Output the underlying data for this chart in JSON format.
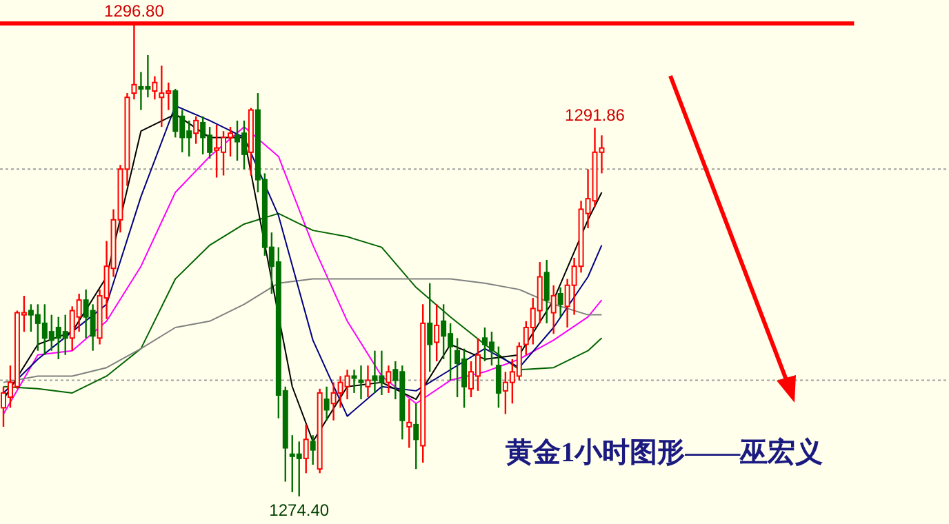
{
  "chart_data": {
    "type": "candlestick",
    "title": "黄金1小时图形——巫宏义",
    "categories": [
      null,
      null,
      null,
      null,
      null,
      null,
      null,
      null,
      null,
      null,
      null,
      null,
      null,
      null,
      null,
      null,
      null,
      null,
      null,
      null,
      null,
      null,
      null,
      null,
      null,
      null,
      null,
      null,
      null,
      null,
      null,
      null,
      null,
      null,
      null,
      null,
      null,
      null,
      null,
      null,
      null,
      null,
      null,
      null,
      null,
      null,
      null,
      null,
      null,
      null,
      null,
      null,
      null,
      null,
      null,
      null,
      null,
      null,
      null,
      null,
      null,
      null,
      null,
      null,
      null,
      null,
      null,
      null,
      null,
      null,
      null,
      null,
      null,
      null,
      null,
      null,
      null,
      null,
      null,
      null,
      null,
      null,
      null,
      null,
      null,
      null,
      null,
      null,
      null,
      null,
      null,
      null,
      null,
      null,
      null,
      null,
      null,
      null,
      null,
      null,
      null,
      null,
      null,
      null,
      null,
      null,
      null,
      null,
      null,
      null,
      null,
      null,
      null,
      null,
      null,
      null,
      null,
      null,
      null,
      null,
      null,
      null,
      null,
      null,
      null,
      null,
      null,
      null,
      null,
      null,
      null,
      null,
      null,
      null,
      null,
      null,
      null,
      null
    ],
    "ohlc": [
      [
        1278.6,
        1279.6,
        1277.7,
        1279.3
      ],
      [
        1279.1,
        1280.6,
        1278.6,
        1279.8
      ],
      [
        1279.6,
        1283.2,
        1279.5,
        1283.1
      ],
      [
        1283.0,
        1283.9,
        1282.2,
        1283.1
      ],
      [
        1283.2,
        1283.5,
        1282.2,
        1283.0
      ],
      [
        1283.0,
        1283.5,
        1281.3,
        1282.6
      ],
      [
        1282.6,
        1283.5,
        1281.1,
        1281.9
      ],
      [
        1282.2,
        1283.0,
        1281.3,
        1281.8
      ],
      [
        1282.4,
        1282.9,
        1280.9,
        1281.9
      ],
      [
        1282.2,
        1283.0,
        1281.1,
        1281.9
      ],
      [
        1281.9,
        1283.4,
        1281.3,
        1283.2
      ],
      [
        1282.9,
        1284.0,
        1282.2,
        1283.7
      ],
      [
        1283.7,
        1284.2,
        1281.9,
        1282.9
      ],
      [
        1283.2,
        1283.5,
        1281.3,
        1282.0
      ],
      [
        1281.9,
        1284.2,
        1281.6,
        1283.9
      ],
      [
        1283.8,
        1286.5,
        1282.8,
        1285.3
      ],
      [
        1285.2,
        1288.0,
        1284.8,
        1287.5
      ],
      [
        1287.5,
        1290.1,
        1286.9,
        1289.9
      ],
      [
        1289.9,
        1293.5,
        1289.1,
        1293.3
      ],
      [
        1293.5,
        1296.8,
        1293.2,
        1293.9
      ],
      [
        1293.8,
        1294.5,
        1292.7,
        1293.7
      ],
      [
        1293.8,
        1295.3,
        1293.3,
        1293.7
      ],
      [
        1293.6,
        1294.3,
        1293.2,
        1294.0
      ],
      [
        1293.3,
        1294.8,
        1291.9,
        1293.5
      ],
      [
        1293.5,
        1294.0,
        1292.7,
        1293.6
      ],
      [
        1293.6,
        1293.7,
        1291.4,
        1291.7
      ],
      [
        1292.4,
        1292.7,
        1290.7,
        1291.4
      ],
      [
        1291.7,
        1292.2,
        1290.5,
        1291.4
      ],
      [
        1291.6,
        1292.4,
        1291.1,
        1292.2
      ],
      [
        1292.1,
        1292.4,
        1290.6,
        1291.4
      ],
      [
        1291.5,
        1291.9,
        1290.4,
        1290.7
      ],
      [
        1290.8,
        1292.0,
        1289.5,
        1290.9
      ],
      [
        1290.7,
        1291.7,
        1289.6,
        1291.4
      ],
      [
        1291.4,
        1291.9,
        1290.5,
        1291.6
      ],
      [
        1291.5,
        1292.2,
        1290.3,
        1291.2
      ],
      [
        1291.6,
        1292.2,
        1289.9,
        1290.6
      ],
      [
        1290.7,
        1292.8,
        1289.6,
        1292.7
      ],
      [
        1292.7,
        1293.5,
        1288.8,
        1289.4
      ],
      [
        1289.4,
        1289.7,
        1285.8,
        1286.2
      ],
      [
        1286.2,
        1286.9,
        1284.0,
        1285.3
      ],
      [
        1285.5,
        1286.2,
        1278.1,
        1279.2
      ],
      [
        1279.4,
        1279.6,
        1275.1,
        1276.7
      ],
      [
        1276.4,
        1277.3,
        1274.6,
        1276.3
      ],
      [
        1276.4,
        1277.0,
        1274.4,
        1276.2
      ],
      [
        1276.2,
        1277.8,
        1275.5,
        1277.1
      ],
      [
        1277.0,
        1277.3,
        1275.9,
        1276.6
      ],
      [
        1275.7,
        1279.5,
        1275.5,
        1279.3
      ],
      [
        1279.0,
        1279.6,
        1278.0,
        1278.5
      ],
      [
        1278.8,
        1279.8,
        1278.0,
        1279.3
      ],
      [
        1279.3,
        1280.1,
        1278.6,
        1279.8
      ],
      [
        1279.6,
        1280.4,
        1279.0,
        1280.1
      ],
      [
        1280.1,
        1280.4,
        1279.3,
        1280.0
      ],
      [
        1279.9,
        1280.6,
        1279.0,
        1279.8
      ],
      [
        1279.6,
        1280.6,
        1279.1,
        1279.9
      ],
      [
        1280.1,
        1281.3,
        1279.3,
        1279.9
      ],
      [
        1280.1,
        1281.3,
        1279.2,
        1279.8
      ],
      [
        1279.8,
        1280.6,
        1279.3,
        1280.3
      ],
      [
        1280.4,
        1280.8,
        1279.0,
        1279.9
      ],
      [
        1280.3,
        1280.6,
        1277.1,
        1278.0
      ],
      [
        1277.7,
        1279.0,
        1276.7,
        1277.9
      ],
      [
        1277.8,
        1278.8,
        1275.7,
        1277.1
      ],
      [
        1276.8,
        1283.5,
        1276.0,
        1282.6
      ],
      [
        1282.6,
        1284.5,
        1280.3,
        1281.6
      ],
      [
        1281.7,
        1283.5,
        1280.8,
        1282.5
      ],
      [
        1282.7,
        1283.5,
        1280.9,
        1282.0
      ],
      [
        1282.1,
        1282.6,
        1279.9,
        1281.5
      ],
      [
        1281.3,
        1281.9,
        1279.1,
        1280.7
      ],
      [
        1280.9,
        1281.4,
        1278.6,
        1279.6
      ],
      [
        1279.5,
        1280.8,
        1279.1,
        1280.3
      ],
      [
        1280.1,
        1281.9,
        1279.4,
        1281.1
      ],
      [
        1281.9,
        1282.4,
        1280.8,
        1281.6
      ],
      [
        1281.7,
        1282.2,
        1280.6,
        1281.3
      ],
      [
        1280.6,
        1281.5,
        1278.6,
        1279.3
      ],
      [
        1279.4,
        1280.3,
        1278.3,
        1279.8
      ],
      [
        1279.8,
        1280.9,
        1278.8,
        1280.3
      ],
      [
        1280.1,
        1281.7,
        1279.9,
        1281.5
      ],
      [
        1281.6,
        1282.7,
        1281.1,
        1282.4
      ],
      [
        1282.4,
        1283.8,
        1281.6,
        1283.3
      ],
      [
        1283.2,
        1285.5,
        1282.6,
        1284.8
      ],
      [
        1285.0,
        1285.6,
        1282.6,
        1283.7
      ],
      [
        1283.1,
        1284.4,
        1282.1,
        1283.9
      ],
      [
        1284.0,
        1284.3,
        1282.9,
        1283.5
      ],
      [
        1283.4,
        1284.7,
        1282.4,
        1284.4
      ],
      [
        1284.4,
        1285.7,
        1283.0,
        1285.3
      ],
      [
        1285.3,
        1288.4,
        1285.0,
        1288.0
      ],
      [
        1287.8,
        1289.9,
        1287.1,
        1288.5
      ],
      [
        1288.4,
        1291.86,
        1288.1,
        1290.7
      ],
      [
        1290.7,
        1291.5,
        1289.7,
        1290.9
      ],
      null,
      null,
      null,
      null,
      null,
      null,
      null,
      null,
      null,
      null,
      null,
      null,
      null,
      null,
      null,
      null,
      null,
      null,
      null,
      null,
      null,
      null,
      null,
      null,
      null,
      null,
      null,
      null,
      null,
      null,
      null,
      null,
      null,
      null,
      null,
      null,
      null,
      null,
      null,
      null,
      null,
      null,
      null,
      null,
      null,
      null,
      null,
      null,
      null,
      null
    ],
    "series": [
      {
        "type": "line",
        "color": "#ff00ff",
        "values": [
          1278.3,
          null,
          null,
          null,
          null,
          1281.1,
          null,
          null,
          null,
          null,
          1281.3,
          null,
          null,
          null,
          null,
          1282.7,
          null,
          null,
          null,
          null,
          1285.3,
          null,
          null,
          null,
          null,
          1288.8,
          null,
          null,
          null,
          null,
          1290.5,
          null,
          null,
          null,
          null,
          1291.9,
          null,
          null,
          null,
          null,
          1290.5,
          null,
          null,
          null,
          null,
          1286.3,
          null,
          null,
          null,
          null,
          1282.7,
          null,
          null,
          null,
          null,
          1280.1,
          null,
          null,
          null,
          null,
          1278.8,
          null,
          null,
          null,
          null,
          1279.9,
          null,
          null,
          null,
          null,
          1280.3,
          null,
          null,
          null,
          null,
          1280.9,
          null,
          null,
          null,
          null,
          1281.8,
          null,
          null,
          null,
          null,
          1282.9,
          null,
          1283.7,
          null,
          null,
          null,
          null,
          null,
          null,
          null,
          null,
          null,
          null,
          null,
          null,
          null,
          null,
          null,
          null,
          null,
          null,
          null,
          null,
          null,
          null,
          null,
          null,
          null,
          null,
          null,
          null,
          null,
          null,
          null,
          null,
          null,
          null,
          null,
          null,
          null,
          null,
          null,
          null,
          null,
          null,
          null,
          null,
          null,
          null,
          null,
          null,
          null,
          null
        ]
      },
      {
        "type": "line",
        "color": "#006400",
        "values": [
          1279.6,
          null,
          null,
          null,
          null,
          1279.5,
          null,
          null,
          null,
          null,
          1279.3,
          null,
          null,
          null,
          null,
          1280.1,
          null,
          null,
          null,
          null,
          1281.4,
          null,
          null,
          null,
          null,
          1284.7,
          null,
          null,
          null,
          null,
          1286.3,
          null,
          null,
          null,
          null,
          1287.3,
          null,
          null,
          null,
          null,
          1287.8,
          null,
          null,
          null,
          null,
          1287.0,
          null,
          null,
          null,
          null,
          1286.7,
          null,
          null,
          null,
          null,
          1286.2,
          null,
          null,
          null,
          null,
          1284.3,
          null,
          null,
          null,
          null,
          1282.9,
          null,
          null,
          null,
          null,
          1281.6,
          null,
          null,
          null,
          null,
          1280.4,
          null,
          null,
          null,
          null,
          1280.5,
          null,
          null,
          null,
          null,
          1281.3,
          null,
          1281.9,
          null,
          null,
          null,
          null,
          null,
          null,
          null,
          null,
          null,
          null,
          null,
          null,
          null,
          null,
          null,
          null,
          null,
          null,
          null,
          null,
          null,
          null,
          null,
          null,
          null,
          null,
          null,
          null,
          null,
          null,
          null,
          null,
          null,
          null,
          null,
          null,
          null,
          null,
          null,
          null,
          null,
          null,
          null,
          null,
          null,
          null,
          null,
          null,
          null,
          null
        ]
      },
      {
        "type": "line",
        "color": "#808080",
        "values": [
          1279.8,
          null,
          null,
          null,
          null,
          1280.1,
          null,
          null,
          null,
          null,
          1280.1,
          null,
          null,
          null,
          null,
          1280.5,
          null,
          null,
          null,
          null,
          1281.4,
          null,
          null,
          null,
          null,
          1282.4,
          null,
          null,
          null,
          null,
          1282.7,
          null,
          null,
          null,
          null,
          1283.5,
          null,
          null,
          null,
          null,
          1284.5,
          null,
          null,
          null,
          null,
          1284.7,
          null,
          null,
          null,
          null,
          1284.7,
          null,
          null,
          null,
          null,
          1284.7,
          null,
          null,
          null,
          null,
          1284.7,
          null,
          null,
          null,
          null,
          1284.7,
          null,
          null,
          null,
          null,
          1284.5,
          null,
          null,
          null,
          null,
          1284.2,
          null,
          null,
          null,
          null,
          1283.5,
          null,
          null,
          null,
          null,
          1283.0,
          null,
          1283.0,
          null,
          null,
          null,
          null,
          null,
          null,
          null,
          null,
          null,
          null,
          null,
          null,
          null,
          null,
          null,
          null,
          null,
          null,
          null,
          null,
          null,
          null,
          null,
          null,
          null,
          null,
          null,
          null,
          null,
          null,
          null,
          null,
          null,
          null,
          null,
          null,
          null,
          null,
          null,
          null,
          null,
          null,
          null,
          null,
          null,
          null,
          null,
          null,
          null,
          null
        ]
      },
      {
        "type": "line",
        "color": "#000080",
        "values": [
          1279.3,
          null,
          null,
          null,
          null,
          1280.9,
          null,
          null,
          null,
          null,
          1282.2,
          null,
          null,
          null,
          null,
          1283.5,
          null,
          null,
          null,
          null,
          1288.6,
          null,
          null,
          null,
          null,
          1292.9,
          null,
          null,
          null,
          null,
          1292.2,
          null,
          null,
          null,
          null,
          1291.4,
          null,
          null,
          null,
          null,
          1287.7,
          null,
          null,
          null,
          null,
          1281.8,
          null,
          null,
          null,
          null,
          1278.2,
          null,
          null,
          null,
          null,
          1279.6,
          null,
          null,
          null,
          null,
          1279.4,
          null,
          null,
          null,
          null,
          1280.4,
          null,
          null,
          null,
          null,
          1281.4,
          null,
          null,
          null,
          null,
          1280.5,
          null,
          null,
          null,
          null,
          1282.4,
          null,
          null,
          null,
          null,
          1284.8,
          null,
          1286.3,
          null,
          null,
          null,
          null,
          null,
          null,
          null,
          null,
          null,
          null,
          null,
          null,
          null,
          null,
          null,
          null,
          null,
          null,
          null,
          null,
          null,
          null,
          null,
          null,
          null,
          null,
          null,
          null,
          null,
          null,
          null,
          null,
          null,
          null,
          null,
          null,
          null,
          null,
          null,
          null,
          null,
          null,
          null,
          null,
          null,
          null,
          null,
          null,
          null,
          null
        ]
      },
      {
        "type": "line",
        "color": "#000000",
        "values": [
          1279.0,
          null,
          null,
          null,
          null,
          1281.6,
          null,
          null,
          null,
          null,
          1282.2,
          null,
          null,
          null,
          null,
          1284.8,
          null,
          null,
          null,
          null,
          1291.7,
          null,
          null,
          null,
          null,
          1292.5,
          null,
          null,
          null,
          null,
          1291.4,
          null,
          null,
          null,
          null,
          1291.4,
          null,
          null,
          null,
          null,
          null,
          null,
          1279.6,
          null,
          null,
          1277.0,
          null,
          null,
          null,
          null,
          1279.6,
          null,
          null,
          null,
          null,
          1279.8,
          null,
          null,
          null,
          null,
          1279.0,
          null,
          null,
          null,
          null,
          1281.6,
          null,
          null,
          null,
          null,
          1280.9,
          null,
          null,
          null,
          null,
          1281.1,
          null,
          null,
          null,
          null,
          1283.7,
          null,
          null,
          null,
          null,
          1287.5,
          null,
          1288.8,
          null,
          null,
          null,
          null,
          null,
          null,
          null,
          null,
          null,
          null,
          null,
          null,
          null,
          null,
          null,
          null,
          null,
          null,
          null,
          null,
          null,
          null,
          null,
          null,
          null,
          null,
          null,
          null,
          null,
          null,
          null,
          null,
          null,
          null,
          null,
          null,
          null,
          null,
          null,
          null,
          null,
          null,
          null,
          null,
          null,
          null,
          null,
          null,
          null,
          null
        ]
      }
    ],
    "tick_labels": false,
    "ref_lines": [
      {
        "axis": "y",
        "value": 1296.8,
        "color": "#ff0000",
        "line_style": "solid"
      },
      {
        "axis": "y",
        "value": 1289.9,
        "color": "#a0a0a0",
        "line_style": "dotted"
      },
      {
        "axis": "y",
        "value": 1279.9,
        "color": "#a0a0a0",
        "line_style": "dotted"
      }
    ],
    "annotations": [
      {
        "text": "1296.80",
        "y": 1296.8
      },
      {
        "text": "1274.40",
        "y": 1274.4
      },
      {
        "text": "1291.86",
        "y": 1291.86
      }
    ]
  }
}
